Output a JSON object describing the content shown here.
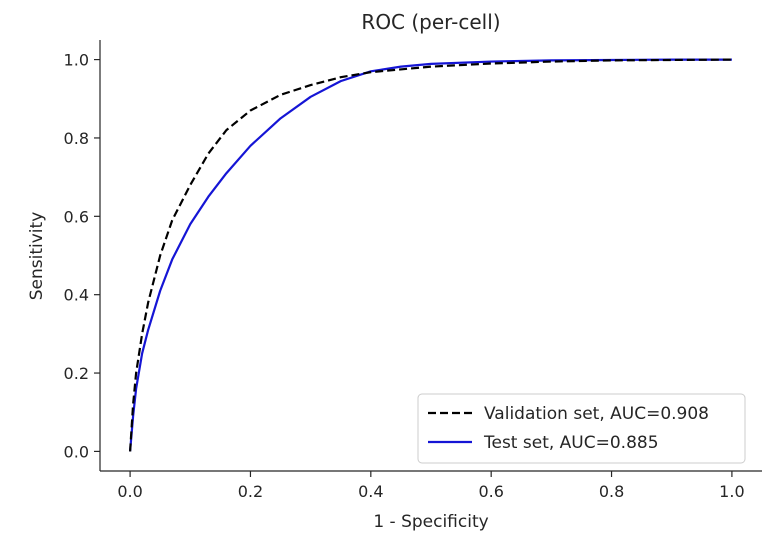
{
  "chart_data": {
    "type": "line",
    "title": "ROC (per-cell)",
    "xlabel": "1 - Specificity",
    "ylabel": "Sensitivity",
    "xlim": [
      -0.05,
      1.05
    ],
    "ylim": [
      -0.05,
      1.05
    ],
    "xticks": [
      0.0,
      0.2,
      0.4,
      0.6,
      0.8,
      1.0
    ],
    "yticks": [
      0.0,
      0.2,
      0.4,
      0.6,
      0.8,
      1.0
    ],
    "xtick_labels": [
      "0.0",
      "0.2",
      "0.4",
      "0.6",
      "0.8",
      "1.0"
    ],
    "ytick_labels": [
      "0.0",
      "0.2",
      "0.4",
      "0.6",
      "0.8",
      "1.0"
    ],
    "grid": false,
    "legend_position": "lower-right",
    "series": [
      {
        "name": "Validation set, AUC=0.908",
        "color": "#000000",
        "style": "dashed",
        "x": [
          0.0,
          0.005,
          0.01,
          0.02,
          0.03,
          0.05,
          0.07,
          0.1,
          0.13,
          0.16,
          0.2,
          0.25,
          0.3,
          0.35,
          0.4,
          0.5,
          0.6,
          0.7,
          0.8,
          0.9,
          1.0
        ],
        "y": [
          0.0,
          0.12,
          0.2,
          0.3,
          0.38,
          0.5,
          0.59,
          0.68,
          0.76,
          0.82,
          0.87,
          0.91,
          0.935,
          0.955,
          0.968,
          0.982,
          0.99,
          0.995,
          0.998,
          0.999,
          1.0
        ]
      },
      {
        "name": "Test set, AUC=0.885",
        "color": "#1515d5",
        "style": "solid",
        "x": [
          0.0,
          0.005,
          0.01,
          0.02,
          0.03,
          0.05,
          0.07,
          0.1,
          0.13,
          0.16,
          0.2,
          0.25,
          0.3,
          0.35,
          0.4,
          0.45,
          0.5,
          0.6,
          0.7,
          0.8,
          0.9,
          1.0
        ],
        "y": [
          0.0,
          0.09,
          0.16,
          0.25,
          0.31,
          0.41,
          0.49,
          0.58,
          0.65,
          0.71,
          0.78,
          0.85,
          0.905,
          0.945,
          0.97,
          0.982,
          0.989,
          0.995,
          0.998,
          0.999,
          1.0,
          1.0
        ]
      }
    ]
  }
}
